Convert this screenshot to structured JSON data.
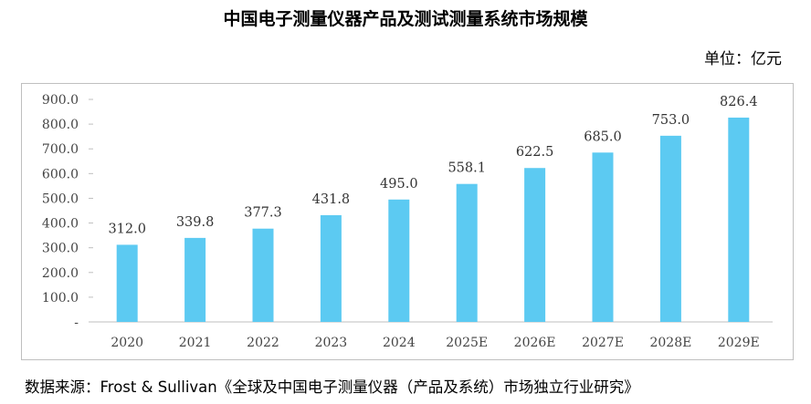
{
  "title": "中国电子测量仪器产品及测试测量系统市场规模",
  "unit_label": "单位：亿元",
  "source": "数据来源：Frost & Sullivan《全球及中国电子测量仪器（产品及系统）市场独立行业研究》",
  "chart_data": {
    "type": "bar",
    "title": "中国电子测量仪器产品及测试测量系统市场规模",
    "categories": [
      "2020",
      "2021",
      "2022",
      "2023",
      "2024",
      "2025E",
      "2026E",
      "2027E",
      "2028E",
      "2029E"
    ],
    "values": [
      312.0,
      339.8,
      377.3,
      431.8,
      495.0,
      558.1,
      622.5,
      685.0,
      753.0,
      826.4
    ],
    "data_labels": [
      "312.0",
      "339.8",
      "377.3",
      "431.8",
      "495.0",
      "558.1",
      "622.5",
      "685.0",
      "753.0",
      "826.4"
    ],
    "y_ticks": [
      "-",
      "100.0",
      "200.0",
      "300.0",
      "400.0",
      "500.0",
      "600.0",
      "700.0",
      "800.0",
      "900.0"
    ],
    "ylim": [
      0,
      900
    ],
    "grid": false,
    "legend": "none",
    "bar_color": "#5ccaf2"
  }
}
